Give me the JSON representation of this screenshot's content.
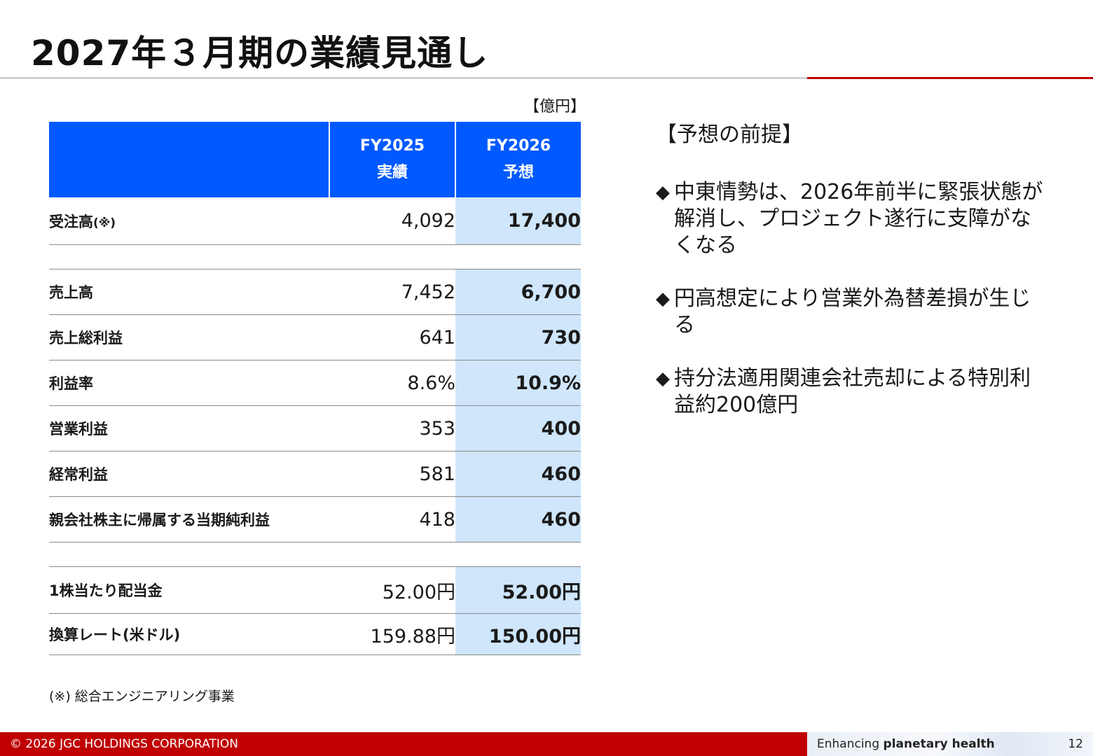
{
  "title": "2027年３月期の業績見通し",
  "unit": "【億円】",
  "table": {
    "headers": [
      {
        "fy": "FY2025",
        "sub": "実績"
      },
      {
        "fy": "FY2026",
        "sub": "予想"
      }
    ],
    "rows": [
      {
        "label": "受注高",
        "note": "(※)",
        "fy2025": "4,092",
        "fy2026": "17,400"
      },
      {
        "label": "売上高",
        "fy2025": "7,452",
        "fy2026": "6,700"
      },
      {
        "label": "売上総利益",
        "fy2025": "641",
        "fy2026": "730"
      },
      {
        "label": "利益率",
        "fy2025": "8.6%",
        "fy2026": "10.9%"
      },
      {
        "label": "営業利益",
        "fy2025": "353",
        "fy2026": "400"
      },
      {
        "label": "経常利益",
        "fy2025": "581",
        "fy2026": "460"
      },
      {
        "label": "親会社株主に帰属する当期純利益",
        "fy2025": "418",
        "fy2026": "460"
      },
      {
        "label": "1株当たり配当金",
        "fy2025": "52.00円",
        "fy2026": "52.00円"
      },
      {
        "label": "換算レート(米ドル)",
        "fy2025": "159.88円",
        "fy2026": "150.00円"
      }
    ]
  },
  "footnote": "(※) 総合エンジニアリング事業",
  "assumptions": {
    "title": "【予想の前提】",
    "bullet_mark": "◆",
    "items": [
      "中東情勢は、2026年前半に緊張状態が解消し、プロジェクト遂行に支障がなくなる",
      "円高想定により営業外為替差損が生じる",
      "持分法適用関連会社売却による特別利益約200億円"
    ]
  },
  "footer": {
    "copyright": "© 2026 JGC HOLDINGS CORPORATION",
    "tagline_prefix": "Enhancing ",
    "tagline_bold": "planetary health",
    "page_number": "12"
  },
  "colors": {
    "header_blue": "#005aff",
    "forecast_cell": "#cfe6fb",
    "brand_red": "#c00000"
  }
}
